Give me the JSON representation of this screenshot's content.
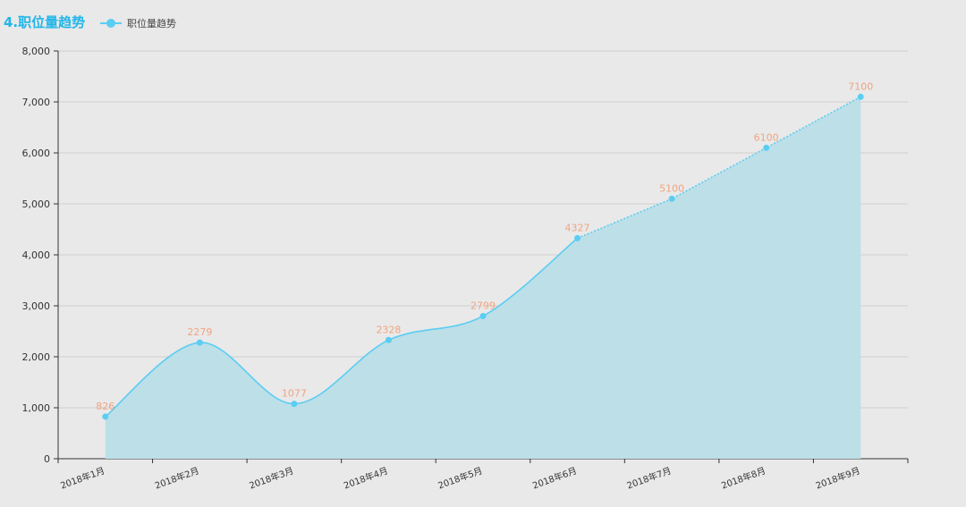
{
  "header": {
    "title": "4.职位量趋势",
    "legend_label": "职位量趋势"
  },
  "colors": {
    "line": "#5bcdf2",
    "area": "#bcdfe8",
    "label": "#f0a482",
    "title": "#22b5e8",
    "grid": "#d0d0d0"
  },
  "chart_data": {
    "type": "area",
    "title": "4.职位量趋势",
    "xlabel": "",
    "ylabel": "",
    "categories": [
      "2018年1月",
      "2018年2月",
      "2018年3月",
      "2018年4月",
      "2018年5月",
      "2018年6月",
      "2018年7月",
      "2018年8月",
      "2018年9月"
    ],
    "series": [
      {
        "name": "职位量趋势",
        "values": [
          826,
          2279,
          1077,
          2328,
          2799,
          4327,
          5100,
          6100,
          7100
        ],
        "labels": [
          "826",
          "2279",
          "1077",
          "2328",
          "2799",
          "4327",
          "5100",
          "6100",
          "7100"
        ],
        "smooth_through_index": 5,
        "dotted_from_index": 5
      }
    ],
    "ylim": [
      0,
      8000
    ],
    "yticks": [
      "0",
      "1,000",
      "2,000",
      "3,000",
      "4,000",
      "5,000",
      "6,000",
      "7,000",
      "8,000"
    ],
    "grid": true,
    "legend": "top-left"
  }
}
